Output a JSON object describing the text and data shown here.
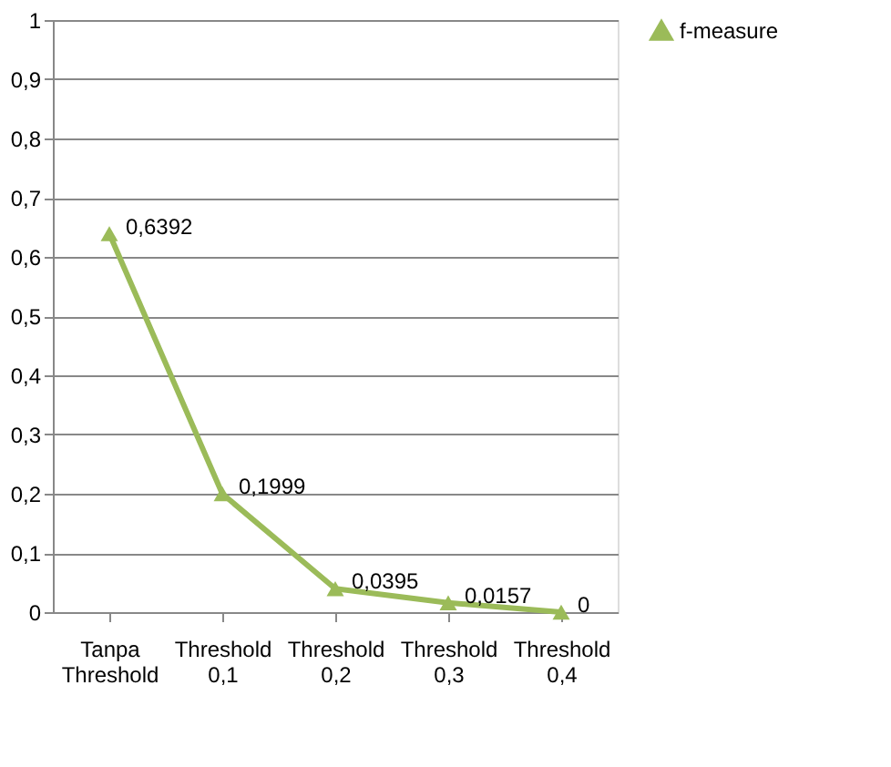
{
  "chart_data": {
    "type": "line",
    "categories": [
      "Tanpa Threshold",
      "Threshold 0,1",
      "Threshold 0,2",
      "Threshold 0,3",
      "Threshold 0,4"
    ],
    "series": [
      {
        "name": "f-measure",
        "color": "#9bbb59",
        "values": [
          0.6392,
          0.1999,
          0.0395,
          0.0157,
          0
        ],
        "value_labels": [
          "0,6392",
          "0,1999",
          "0,0395",
          "0,0157",
          "0"
        ]
      }
    ],
    "ylim": [
      0,
      1
    ],
    "yticks": [
      0,
      {
        "value": 0.1,
        "label": "0,1"
      },
      {
        "value": 0.2,
        "label": "0,2"
      },
      {
        "value": 0.3,
        "label": "0,3"
      },
      {
        "value": 0.4,
        "label": "0,4"
      },
      {
        "value": 0.5,
        "label": "0,5"
      },
      {
        "value": 0.6,
        "label": "0,6"
      },
      {
        "value": 0.7,
        "label": "0,7"
      },
      {
        "value": 0.8,
        "label": "0,8"
      },
      {
        "value": 0.9,
        "label": "0,9"
      },
      1
    ],
    "grid": "y",
    "legend": "right",
    "marker": "triangle",
    "line_style": "solid"
  }
}
